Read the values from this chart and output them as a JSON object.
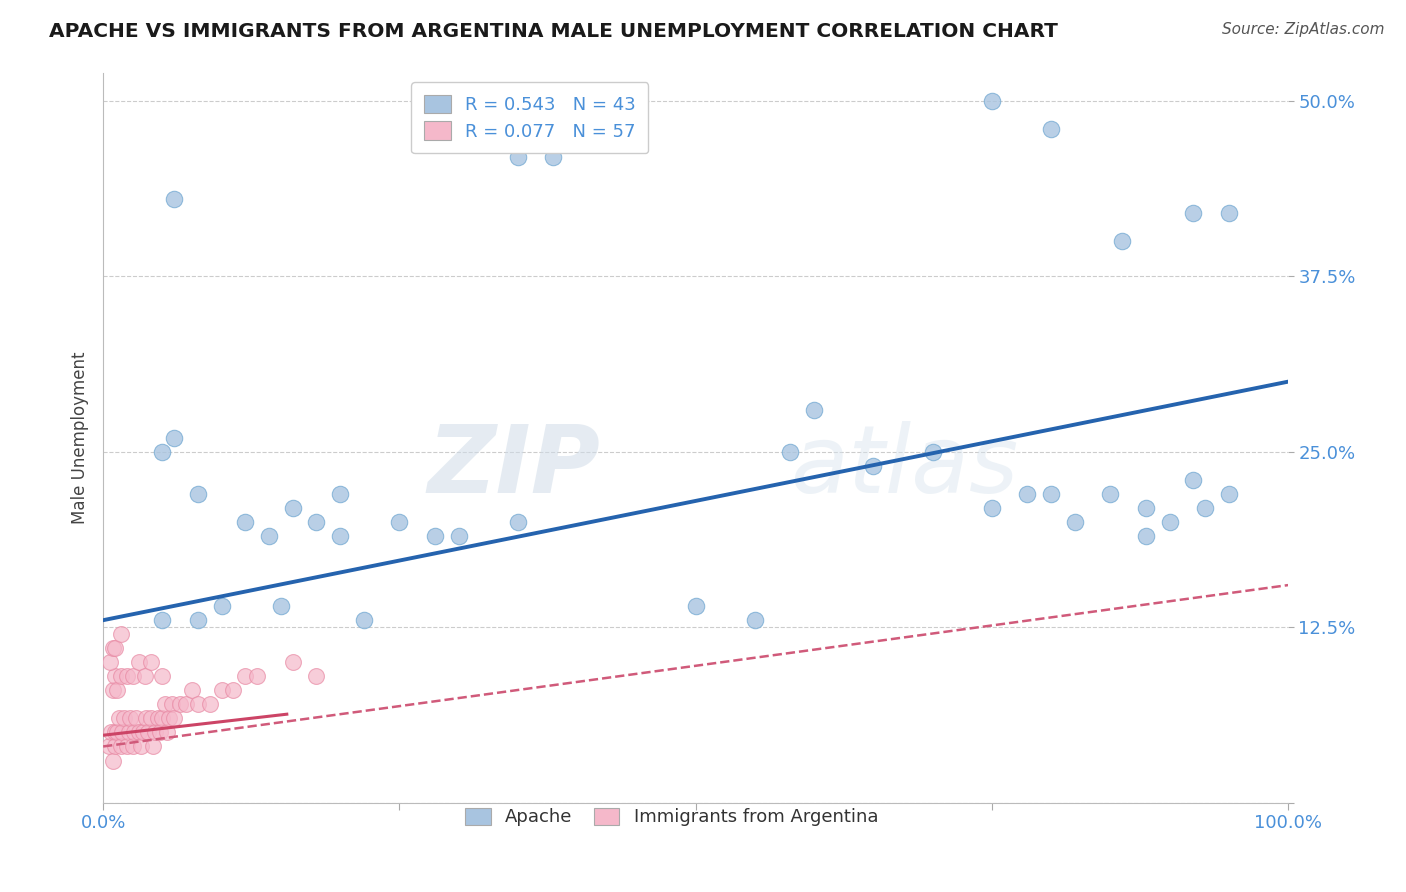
{
  "title": "APACHE VS IMMIGRANTS FROM ARGENTINA MALE UNEMPLOYMENT CORRELATION CHART",
  "source": "Source: ZipAtlas.com",
  "ylabel": "Male Unemployment",
  "R_apache": 0.543,
  "N_apache": 43,
  "R_argentina": 0.077,
  "N_argentina": 57,
  "apache_color": "#a8c4e0",
  "apache_edge_color": "#7aadd4",
  "apache_line_color": "#2563ae",
  "argentina_color": "#f5b8ca",
  "argentina_edge_color": "#e88aa4",
  "argentina_line_color": "#d05a7a",
  "argentina_solid_color": "#cc4466",
  "xlim": [
    0.0,
    1.0
  ],
  "ylim": [
    0.0,
    0.52
  ],
  "yticks": [
    0.0,
    0.125,
    0.25,
    0.375,
    0.5
  ],
  "ytick_labels": [
    "",
    "12.5%",
    "25.0%",
    "37.5%",
    "50.0%"
  ],
  "xticks": [
    0.0,
    0.25,
    0.5,
    0.75,
    1.0
  ],
  "xtick_labels": [
    "0.0%",
    "",
    "",
    "",
    "100.0%"
  ],
  "apache_x": [
    0.06,
    0.35,
    0.38,
    0.75,
    0.8,
    0.86,
    0.92,
    0.95,
    0.05,
    0.08,
    0.12,
    0.16,
    0.2,
    0.25,
    0.28,
    0.35,
    0.05,
    0.1,
    0.15,
    0.22,
    0.5,
    0.58,
    0.7,
    0.75,
    0.78,
    0.82,
    0.85,
    0.88,
    0.9,
    0.93,
    0.95,
    0.06,
    0.18,
    0.3,
    0.6,
    0.65,
    0.8,
    0.88,
    0.92,
    0.08,
    0.14,
    0.2,
    0.55
  ],
  "apache_y": [
    0.43,
    0.46,
    0.46,
    0.5,
    0.48,
    0.4,
    0.42,
    0.42,
    0.25,
    0.22,
    0.2,
    0.21,
    0.22,
    0.2,
    0.19,
    0.2,
    0.13,
    0.14,
    0.14,
    0.13,
    0.14,
    0.25,
    0.25,
    0.21,
    0.22,
    0.2,
    0.22,
    0.19,
    0.2,
    0.21,
    0.22,
    0.26,
    0.2,
    0.19,
    0.28,
    0.24,
    0.22,
    0.21,
    0.23,
    0.13,
    0.19,
    0.19,
    0.13
  ],
  "argentina_x": [
    0.005,
    0.007,
    0.008,
    0.01,
    0.01,
    0.012,
    0.013,
    0.015,
    0.016,
    0.018,
    0.02,
    0.022,
    0.023,
    0.025,
    0.026,
    0.028,
    0.03,
    0.032,
    0.034,
    0.036,
    0.038,
    0.04,
    0.042,
    0.044,
    0.046,
    0.048,
    0.05,
    0.052,
    0.054,
    0.056,
    0.058,
    0.06,
    0.065,
    0.07,
    0.075,
    0.08,
    0.09,
    0.1,
    0.11,
    0.12,
    0.008,
    0.01,
    0.012,
    0.015,
    0.02,
    0.025,
    0.03,
    0.035,
    0.04,
    0.05,
    0.006,
    0.008,
    0.01,
    0.015,
    0.13,
    0.16,
    0.18
  ],
  "argentina_y": [
    0.04,
    0.05,
    0.03,
    0.05,
    0.04,
    0.05,
    0.06,
    0.04,
    0.05,
    0.06,
    0.04,
    0.05,
    0.06,
    0.04,
    0.05,
    0.06,
    0.05,
    0.04,
    0.05,
    0.06,
    0.05,
    0.06,
    0.04,
    0.05,
    0.06,
    0.05,
    0.06,
    0.07,
    0.05,
    0.06,
    0.07,
    0.06,
    0.07,
    0.07,
    0.08,
    0.07,
    0.07,
    0.08,
    0.08,
    0.09,
    0.08,
    0.09,
    0.08,
    0.09,
    0.09,
    0.09,
    0.1,
    0.09,
    0.1,
    0.09,
    0.1,
    0.11,
    0.11,
    0.12,
    0.09,
    0.1,
    0.09
  ],
  "watermark_zip": "ZIP",
  "watermark_atlas": "atlas",
  "background_color": "#ffffff",
  "grid_color": "#cccccc",
  "tick_color": "#4a90d9",
  "title_color": "#1a1a1a",
  "source_color": "#555555",
  "ylabel_color": "#444444"
}
